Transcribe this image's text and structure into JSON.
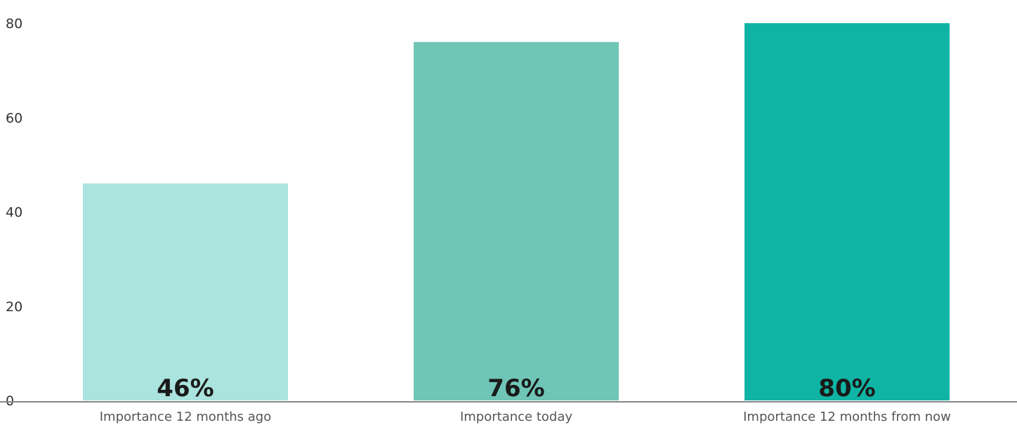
{
  "chart_data": {
    "type": "bar",
    "categories": [
      "Importance 12 months ago",
      "Importance today",
      "Importance 12 months from now"
    ],
    "values": [
      46,
      76,
      80
    ],
    "value_labels": [
      "46%",
      "76%",
      "80%"
    ],
    "y_ticks": [
      "0",
      "20",
      "40",
      "60",
      "80"
    ],
    "ylim": [
      0,
      80
    ],
    "title": "",
    "xlabel": "",
    "ylabel": "",
    "grid": false,
    "legend": "none",
    "colors": [
      "#abe3de",
      "#6fc6b6",
      "#10b4a4"
    ],
    "axis_color": "#888888"
  }
}
